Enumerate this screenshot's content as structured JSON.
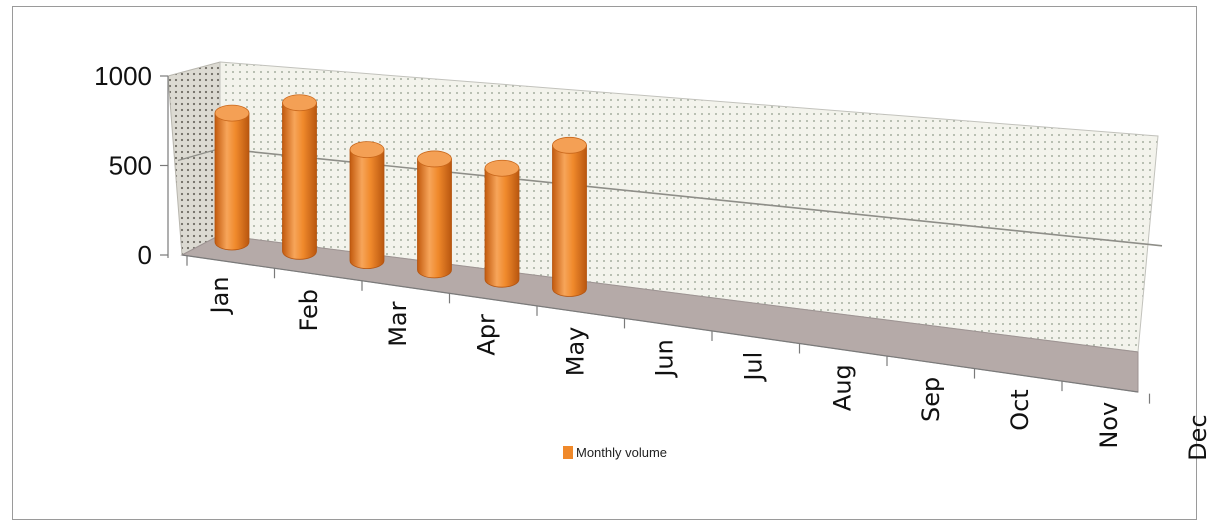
{
  "chart_data": {
    "type": "bar",
    "style": "3d-cylinder",
    "categories": [
      "Jan",
      "Feb",
      "Mar",
      "Apr",
      "May",
      "Jun",
      "Jul",
      "Aug",
      "Sep",
      "Oct",
      "Nov",
      "Dec"
    ],
    "series": [
      {
        "name": "Monthly volume",
        "color": "#f0892a",
        "values": [
          720,
          830,
          620,
          620,
          620,
          800,
          null,
          null,
          null,
          null,
          null,
          null
        ]
      }
    ],
    "yticks": [
      0,
      500,
      1000
    ],
    "ylim": [
      0,
      1000
    ],
    "gridlines": true,
    "legend_position": "bottom",
    "title": "",
    "xlabel": "",
    "ylabel": ""
  }
}
